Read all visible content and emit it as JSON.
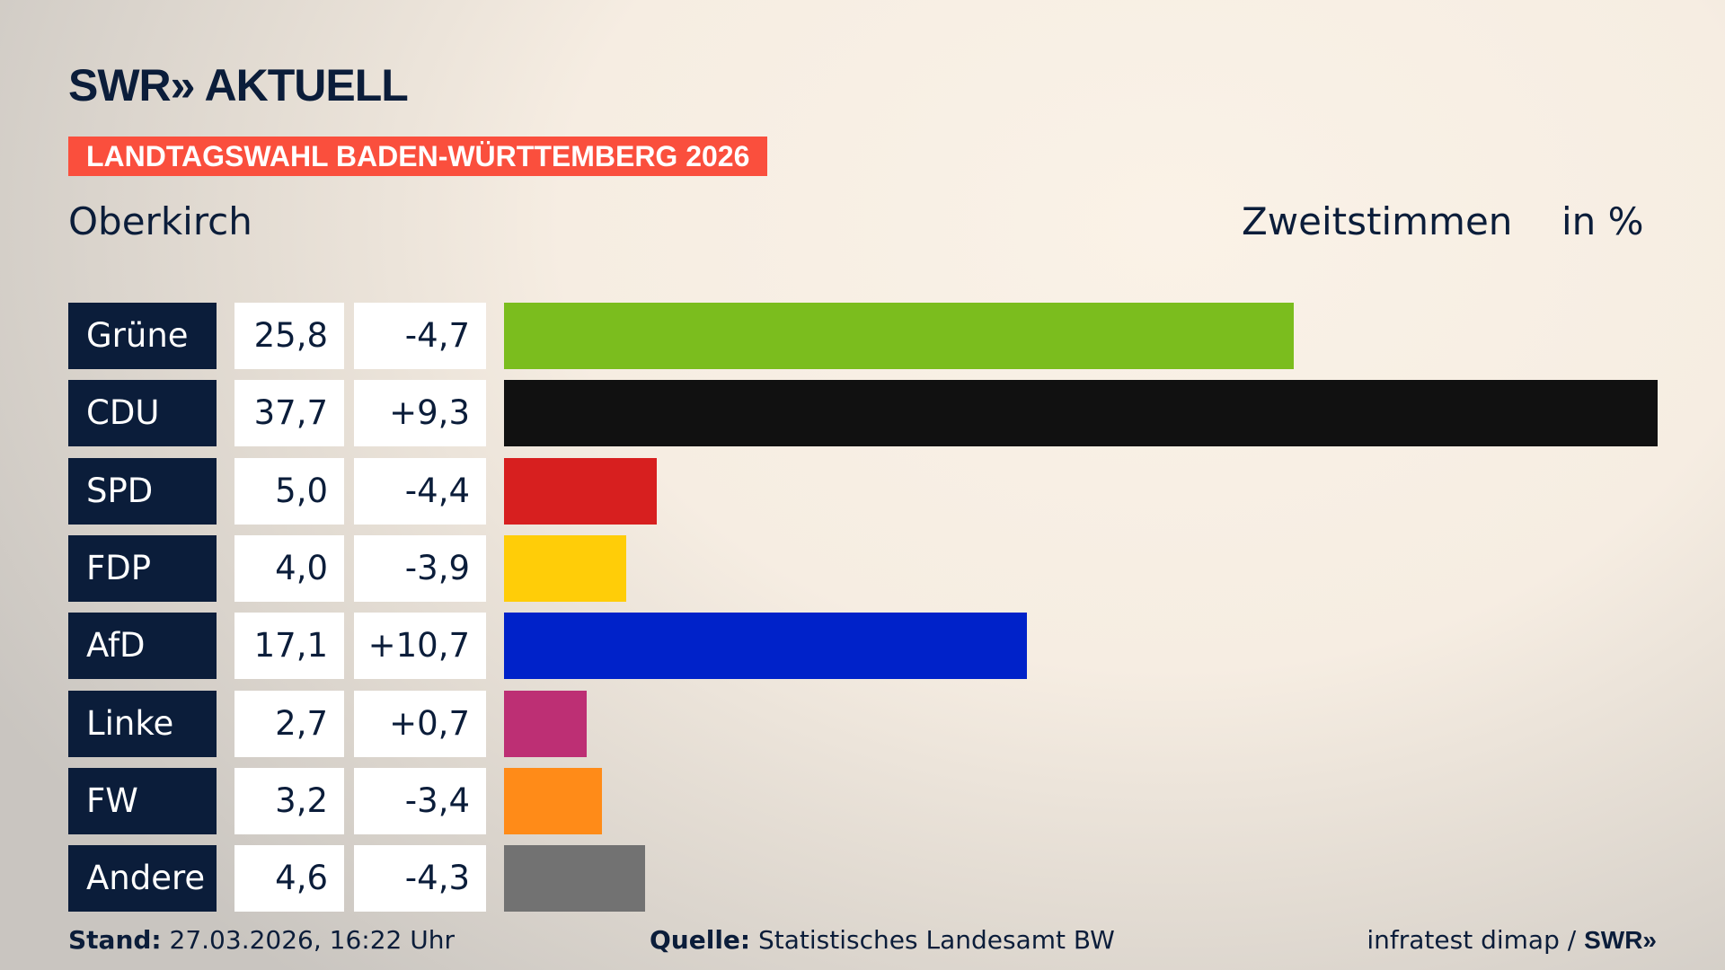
{
  "logo": "SWR» AKTUELL",
  "banner": "LANDTAGSWAHL BADEN-WÜRTTEMBERG 2026",
  "place": "Oberkirch",
  "header_type": "Zweitstimmen",
  "header_unit": "in %",
  "chart_data": {
    "type": "bar",
    "orientation": "horizontal",
    "categories": [
      "Grüne",
      "CDU",
      "SPD",
      "FDP",
      "AfD",
      "Linke",
      "FW",
      "Andere"
    ],
    "values": [
      25.8,
      37.7,
      5.0,
      4.0,
      17.1,
      2.7,
      3.2,
      4.6
    ],
    "value_labels": [
      "25,8",
      "37,7",
      "5,0",
      "4,0",
      "17,1",
      "2,7",
      "3,2",
      "4,6"
    ],
    "diff_labels": [
      "-4,7",
      "+9,3",
      "-4,4",
      "-3,9",
      "+10,7",
      "+0,7",
      "-3,4",
      "-4,3"
    ],
    "colors": [
      "#7bbd1e",
      "#111111",
      "#d71f1f",
      "#ffcd08",
      "#0022c9",
      "#bd2f74",
      "#ff8b18",
      "#727272"
    ]
  },
  "footer": {
    "stand_label": "Stand:",
    "stand_value": "27.03.2026, 16:22 Uhr",
    "source_label": "Quelle:",
    "source_value": "Statistisches Landesamt BW",
    "credit": "infratest dimap / ",
    "credit_logo": "SWR»"
  }
}
